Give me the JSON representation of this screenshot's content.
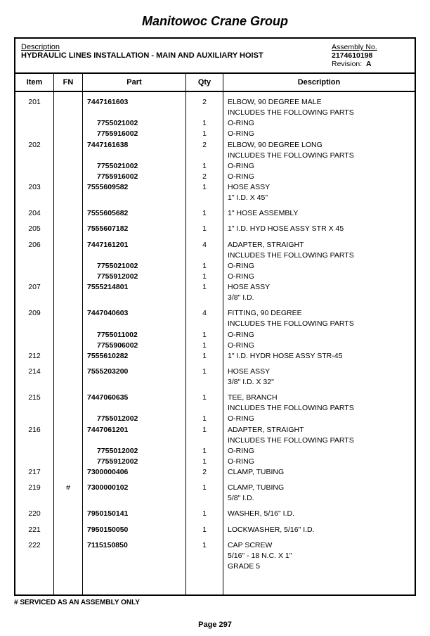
{
  "company": "Manitowoc Crane Group",
  "header": {
    "desc_label": "Description",
    "desc_value": "HYDRAULIC LINES INSTALLATION - MAIN AND AUXILIARY HOIST",
    "assembly_label": "Assembly No.",
    "assembly_value": "2174610198",
    "revision_label": "Revision:",
    "revision_value": "A"
  },
  "columns": {
    "item": "Item",
    "fn": "FN",
    "part": "Part",
    "qty": "Qty",
    "desc": "Description"
  },
  "rows": [
    {
      "type": "main",
      "item": "201",
      "fn": "",
      "part": "7447161603",
      "qty": "2",
      "desc": "ELBOW, 90 DEGREE MALE"
    },
    {
      "type": "cont",
      "desc": " INCLUDES THE FOLLOWING PARTS"
    },
    {
      "type": "sub",
      "part": "7755021002",
      "qty": "1",
      "desc": "O-RING"
    },
    {
      "type": "sub",
      "part": "7755916002",
      "qty": "1",
      "desc": "O-RING"
    },
    {
      "type": "main",
      "item": "202",
      "fn": "",
      "part": "7447161638",
      "qty": "2",
      "desc": "ELBOW, 90 DEGREE LONG"
    },
    {
      "type": "cont",
      "desc": " INCLUDES THE FOLLOWING PARTS"
    },
    {
      "type": "sub",
      "part": "7755021002",
      "qty": "1",
      "desc": "O-RING"
    },
    {
      "type": "sub",
      "part": "7755916002",
      "qty": "2",
      "desc": "O-RING"
    },
    {
      "type": "main",
      "item": "203",
      "fn": "",
      "part": "7555609582",
      "qty": "1",
      "desc": "HOSE ASSY"
    },
    {
      "type": "cont",
      "desc": "1\" I.D. X 45\""
    },
    {
      "type": "spacer"
    },
    {
      "type": "main",
      "item": "204",
      "fn": "",
      "part": "7555605682",
      "qty": "1",
      "desc": "1\" HOSE ASSEMBLY"
    },
    {
      "type": "spacer"
    },
    {
      "type": "main",
      "item": "205",
      "fn": "",
      "part": "7555607182",
      "qty": "1",
      "desc": "1\" I.D. HYD HOSE ASSY STR X 45"
    },
    {
      "type": "spacer"
    },
    {
      "type": "main",
      "item": "206",
      "fn": "",
      "part": "7447161201",
      "qty": "4",
      "desc": "ADAPTER, STRAIGHT"
    },
    {
      "type": "cont",
      "desc": " INCLUDES THE FOLLOWING PARTS"
    },
    {
      "type": "sub",
      "part": "7755021002",
      "qty": "1",
      "desc": "O-RING"
    },
    {
      "type": "sub",
      "part": "7755912002",
      "qty": "1",
      "desc": "O-RING"
    },
    {
      "type": "main",
      "item": "207",
      "fn": "",
      "part": "7555214801",
      "qty": "1",
      "desc": "HOSE ASSY"
    },
    {
      "type": "cont",
      "desc": "3/8\" I.D."
    },
    {
      "type": "spacer"
    },
    {
      "type": "main",
      "item": "209",
      "fn": "",
      "part": "7447040603",
      "qty": "4",
      "desc": "FITTING, 90 DEGREE"
    },
    {
      "type": "cont",
      "desc": " INCLUDES THE FOLLOWING PARTS"
    },
    {
      "type": "sub",
      "part": "7755011002",
      "qty": "1",
      "desc": "O-RING"
    },
    {
      "type": "sub",
      "part": "7755906002",
      "qty": "1",
      "desc": "O-RING"
    },
    {
      "type": "main",
      "item": "212",
      "fn": "",
      "part": "7555610282",
      "qty": "1",
      "desc": "1\" I.D. HYDR HOSE ASSY STR-45"
    },
    {
      "type": "spacer"
    },
    {
      "type": "main",
      "item": "214",
      "fn": "",
      "part": "7555203200",
      "qty": "1",
      "desc": "HOSE ASSY"
    },
    {
      "type": "cont",
      "desc": "3/8\" I.D. X 32\""
    },
    {
      "type": "spacer"
    },
    {
      "type": "main",
      "item": "215",
      "fn": "",
      "part": "7447060635",
      "qty": "1",
      "desc": "TEE, BRANCH"
    },
    {
      "type": "cont",
      "desc": " INCLUDES THE FOLLOWING PARTS"
    },
    {
      "type": "sub",
      "part": "7755012002",
      "qty": "1",
      "desc": "O-RING"
    },
    {
      "type": "main",
      "item": "216",
      "fn": "",
      "part": "7447061201",
      "qty": "1",
      "desc": "ADAPTER, STRAIGHT"
    },
    {
      "type": "cont",
      "desc": " INCLUDES THE FOLLOWING PARTS"
    },
    {
      "type": "sub",
      "part": "7755012002",
      "qty": "1",
      "desc": "O-RING"
    },
    {
      "type": "sub",
      "part": "7755912002",
      "qty": "1",
      "desc": "O-RING"
    },
    {
      "type": "main",
      "item": "217",
      "fn": "",
      "part": "7300000406",
      "qty": "2",
      "desc": "CLAMP, TUBING"
    },
    {
      "type": "spacer"
    },
    {
      "type": "main",
      "item": "219",
      "fn": "#",
      "part": "7300000102",
      "qty": "1",
      "desc": "CLAMP, TUBING"
    },
    {
      "type": "cont",
      "desc": "5/8\" I.D."
    },
    {
      "type": "spacer"
    },
    {
      "type": "main",
      "item": "220",
      "fn": "",
      "part": "7950150141",
      "qty": "1",
      "desc": "WASHER, 5/16\" I.D."
    },
    {
      "type": "spacer"
    },
    {
      "type": "main",
      "item": "221",
      "fn": "",
      "part": "7950150050",
      "qty": "1",
      "desc": "LOCKWASHER, 5/16\" I.D."
    },
    {
      "type": "spacer"
    },
    {
      "type": "main",
      "item": "222",
      "fn": "",
      "part": "7115150850",
      "qty": "1",
      "desc": "CAP SCREW"
    },
    {
      "type": "cont",
      "desc": "5/16\" - 18 N.C. X 1\""
    },
    {
      "type": "cont",
      "desc": "GRADE 5"
    }
  ],
  "footnote": "#  SERVICED AS AN ASSEMBLY ONLY",
  "page_label": "Page 297"
}
